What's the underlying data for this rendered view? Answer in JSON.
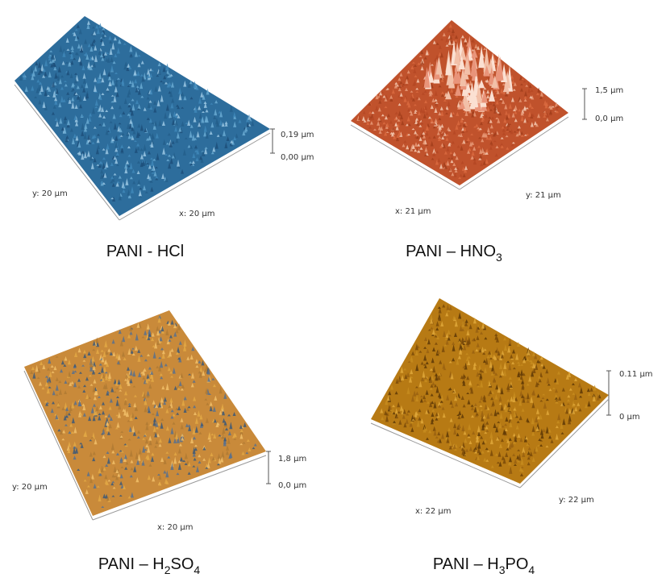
{
  "panels": [
    {
      "caption": [
        {
          "text": "PANI - HCl"
        }
      ],
      "z_top": "0,19 µm",
      "z_bottom": "0,00 µm",
      "axis_a": "y: 20 µm",
      "axis_b": "x: 20 µm"
    },
    {
      "caption": [
        {
          "text": "PANI – HNO"
        },
        {
          "sub": "3"
        }
      ],
      "z_top": "1,5 µm",
      "z_bottom": "0,0 µm",
      "axis_a": "x: 21 µm",
      "axis_b": "y: 21 µm"
    },
    {
      "caption": [
        {
          "text": "PANI – H"
        },
        {
          "sub": "2"
        },
        {
          "text": "SO"
        },
        {
          "sub": "4"
        }
      ],
      "z_top": "1,8 µm",
      "z_bottom": "0,0 µm",
      "axis_a": "y: 20 µm",
      "axis_b": "x: 20 µm"
    },
    {
      "caption": [
        {
          "text": "PANI – H"
        },
        {
          "sub": "3"
        },
        {
          "text": "PO"
        },
        {
          "sub": "4"
        }
      ],
      "z_top": "0.11 µm",
      "z_bottom": "0 µm",
      "axis_a": "x: 22 µm",
      "axis_b": "y: 22 µm"
    }
  ]
}
